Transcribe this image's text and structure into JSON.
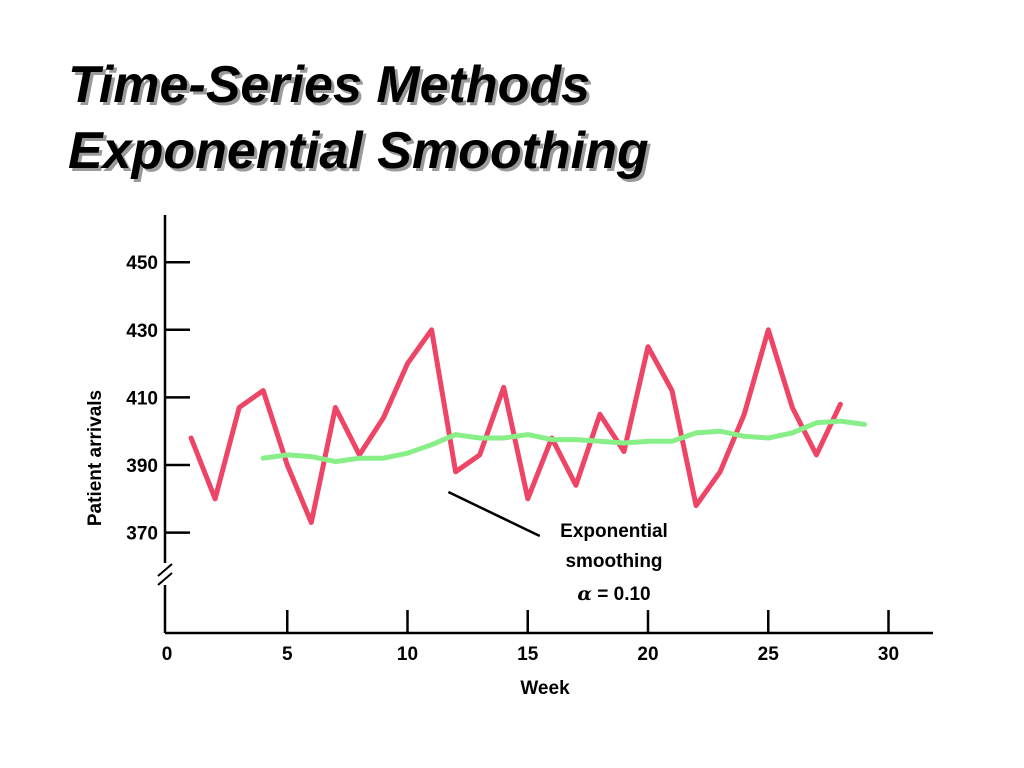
{
  "title": {
    "line1": "Time-Series Methods",
    "line2": "Exponential Smoothing"
  },
  "chart_data": {
    "type": "line",
    "xlabel": "Week",
    "ylabel": "Patient arrivals",
    "xlim": [
      0,
      32
    ],
    "ylim": [
      355,
      460
    ],
    "x_ticks": [
      0,
      5,
      10,
      15,
      20,
      25,
      30
    ],
    "y_ticks": [
      370,
      390,
      410,
      430,
      450
    ],
    "y_axis_break": true,
    "grid": false,
    "series": [
      {
        "color": "#ee4466",
        "x": [
          1,
          2,
          3,
          4,
          5,
          6,
          7,
          8,
          9,
          10,
          11,
          12,
          13,
          14,
          15,
          16,
          17,
          18,
          19,
          20,
          21,
          22,
          23,
          24,
          25,
          26,
          27,
          28
        ],
        "values": [
          398,
          380,
          407,
          412,
          390,
          373,
          407,
          393,
          404,
          420,
          430,
          388,
          393,
          413,
          380,
          398,
          384,
          405,
          394,
          425,
          412,
          378,
          388,
          405,
          430,
          407,
          393,
          408
        ]
      },
      {
        "color": "#88ee88",
        "x": [
          4,
          5,
          6,
          7,
          8,
          9,
          10,
          11,
          12,
          13,
          14,
          15,
          16,
          17,
          18,
          19,
          20,
          21,
          22,
          23,
          24,
          25,
          26,
          27,
          28,
          29
        ],
        "values": [
          392,
          393,
          392.5,
          391,
          392,
          392,
          393.5,
          396,
          399,
          398,
          398,
          399,
          397.5,
          397.5,
          397,
          396.5,
          397,
          397,
          399.5,
          400,
          398.5,
          398,
          399.5,
          402.5,
          403,
          402
        ]
      }
    ],
    "annotation": {
      "line1": "Exponential",
      "line2": "smoothing",
      "alpha_symbol": "α",
      "alpha_value": "= 0.10",
      "pointer_from": [
        11.7,
        382
      ],
      "pointer_to": [
        15.5,
        369
      ]
    }
  }
}
